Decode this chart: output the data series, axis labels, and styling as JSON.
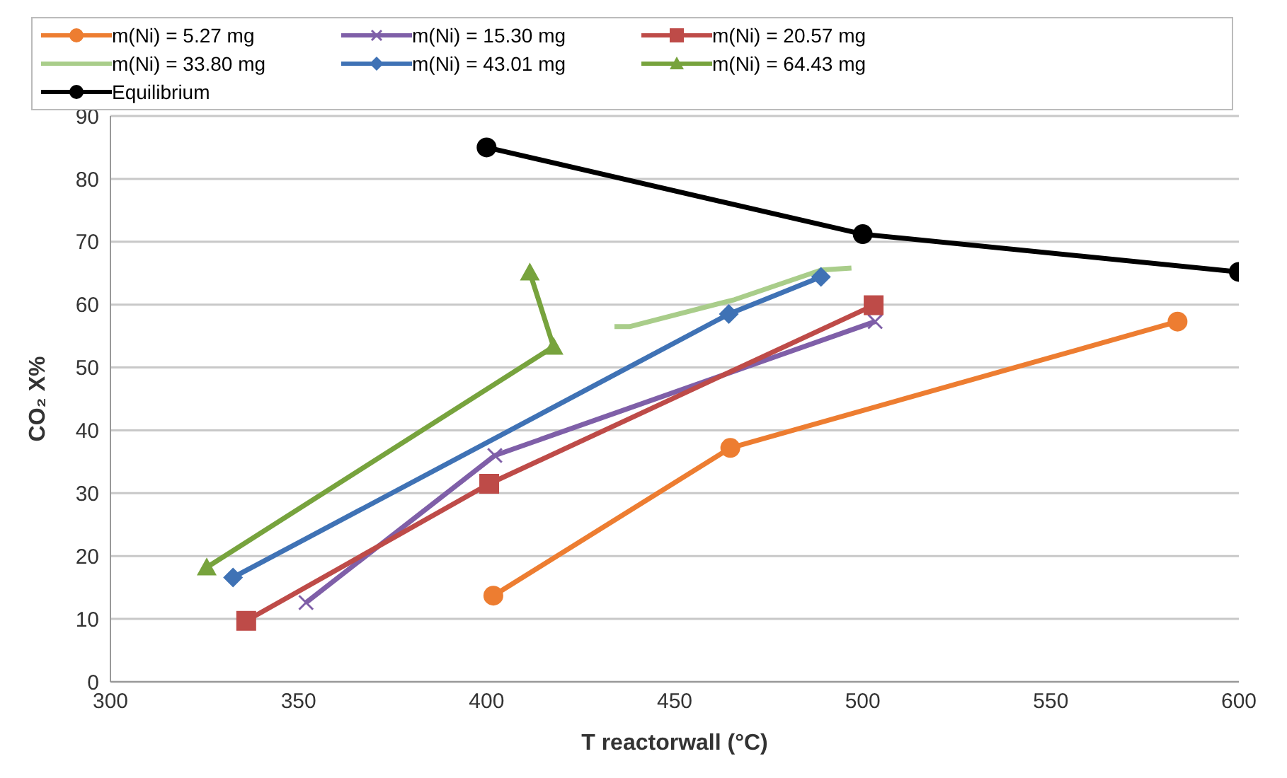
{
  "chart_data": {
    "type": "line",
    "xlabel": "T reactorwall (°C)",
    "ylabel": "CO₂ X%",
    "xlim": [
      300,
      600
    ],
    "xticks": [
      300,
      350,
      400,
      450,
      500,
      550,
      600
    ],
    "ylim": [
      0,
      90
    ],
    "yticks": [
      0,
      10,
      20,
      30,
      40,
      50,
      60,
      70,
      80,
      90
    ],
    "grid": "y",
    "legend": "top",
    "series": [
      {
        "name": "m(Ni) = 5.27 mg",
        "color": "#ed7d31",
        "marker": "circle",
        "x": [
          401.8,
          464.8,
          583.7
        ],
        "values": [
          13.7,
          37.2,
          57.3
        ]
      },
      {
        "name": "m(Ni) = 15.30 mg",
        "color": "#7f5fa8",
        "marker": "cross",
        "x": [
          352,
          402.2,
          503.3
        ],
        "values": [
          12.6,
          36,
          57.3
        ]
      },
      {
        "name": "m(Ni) = 20.57 mg",
        "color": "#be4b48",
        "marker": "square",
        "x": [
          336.1,
          400.7,
          502.9
        ],
        "values": [
          9.7,
          31.5,
          59.9
        ]
      },
      {
        "name": "m(Ni) = 33.80 mg",
        "color": "#a9cd8a",
        "marker": "none",
        "x": [
          434,
          438,
          466,
          489,
          497
        ],
        "values": [
          56.5,
          56.5,
          60.8,
          65.5,
          65.8
        ]
      },
      {
        "name": "m(Ni) = 43.01 mg",
        "color": "#3f72b5",
        "marker": "diamond",
        "x": [
          332.6,
          464.4,
          488.9
        ],
        "values": [
          16.6,
          58.5,
          64.4
        ]
      },
      {
        "name": "m(Ni) = 64.43 mg",
        "color": "#77a33d",
        "marker": "triangle",
        "x": [
          325.6,
          417.8,
          411.5
        ],
        "values": [
          18.2,
          53.3,
          65.1
        ]
      },
      {
        "name": "Equilibrium",
        "color": "#000000",
        "marker": "circle",
        "x": [
          400,
          500,
          600
        ],
        "values": [
          85,
          71.2,
          65.2
        ]
      }
    ]
  }
}
